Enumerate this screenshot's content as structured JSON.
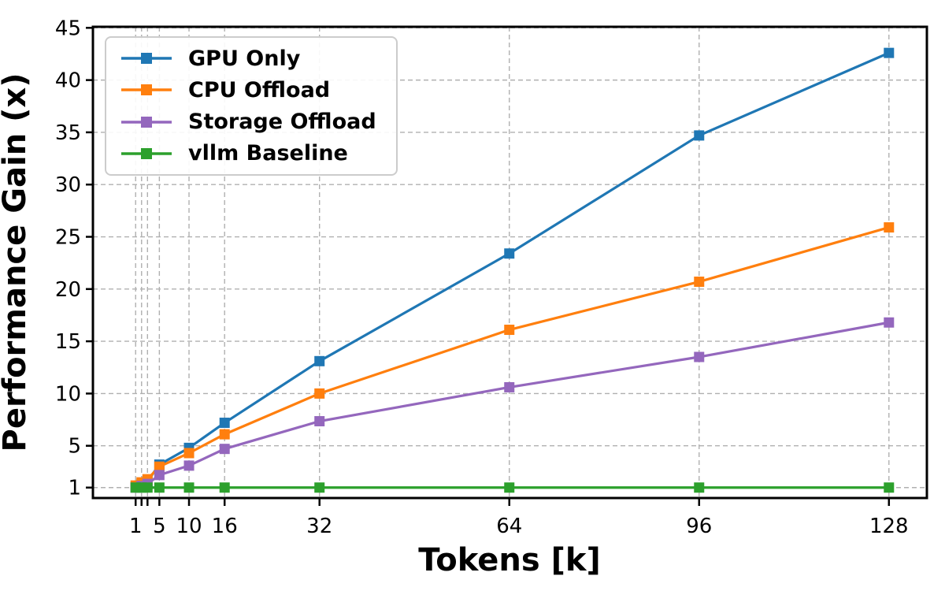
{
  "chart_data": {
    "type": "line",
    "title": "",
    "xlabel": "Tokens [k]",
    "ylabel": "Performance Gain (x)",
    "x": [
      1,
      2,
      3,
      5,
      10,
      16,
      32,
      64,
      96,
      128
    ],
    "series": [
      {
        "name": "GPU Only",
        "color": "#1f77b4",
        "marker": "square",
        "values": [
          1.05,
          1.3,
          1.6,
          3.2,
          4.8,
          7.2,
          13.1,
          23.4,
          34.7,
          42.6
        ]
      },
      {
        "name": "CPU Offload",
        "color": "#ff7f0e",
        "marker": "square",
        "values": [
          1.2,
          1.5,
          1.8,
          3.0,
          4.3,
          6.1,
          10.0,
          16.1,
          20.7,
          25.9
        ]
      },
      {
        "name": "Storage Offload",
        "color": "#9467bd",
        "marker": "square",
        "values": [
          1.0,
          1.15,
          1.35,
          2.2,
          3.1,
          4.7,
          7.35,
          10.6,
          13.5,
          16.8
        ]
      },
      {
        "name": "vllm Baseline",
        "color": "#2ca02c",
        "marker": "square",
        "values": [
          1.0,
          1.0,
          1.0,
          1.0,
          1.0,
          1.0,
          1.0,
          1.0,
          1.0,
          1.0
        ]
      }
    ],
    "xticks": {
      "positions": [
        1,
        5,
        10,
        16,
        32,
        64,
        96,
        128
      ],
      "labels": [
        "1",
        "5",
        "10",
        "16",
        "32",
        "64",
        "96",
        "128"
      ]
    },
    "grid_x": [
      1,
      2,
      3,
      5,
      10,
      16,
      32,
      64,
      96,
      128
    ],
    "yticks": [
      1,
      5,
      10,
      15,
      20,
      25,
      30,
      35,
      40,
      45
    ],
    "ytick_labels": [
      "1",
      "5",
      "10",
      "15",
      "20",
      "25",
      "30",
      "35",
      "40",
      "45"
    ],
    "xlim": [
      -6.2,
      134.4
    ],
    "ylim": [
      0,
      45.1
    ],
    "grid": true,
    "grid_style": "dashed",
    "legend_position": "upper-left",
    "legend": [
      "GPU Only",
      "CPU Offload",
      "Storage Offload",
      "vllm Baseline"
    ]
  },
  "colors": {
    "grid": "#b0b0b0",
    "axis": "#000000",
    "legend_border": "#cccccc",
    "background": "#ffffff",
    "text": "#000000"
  }
}
